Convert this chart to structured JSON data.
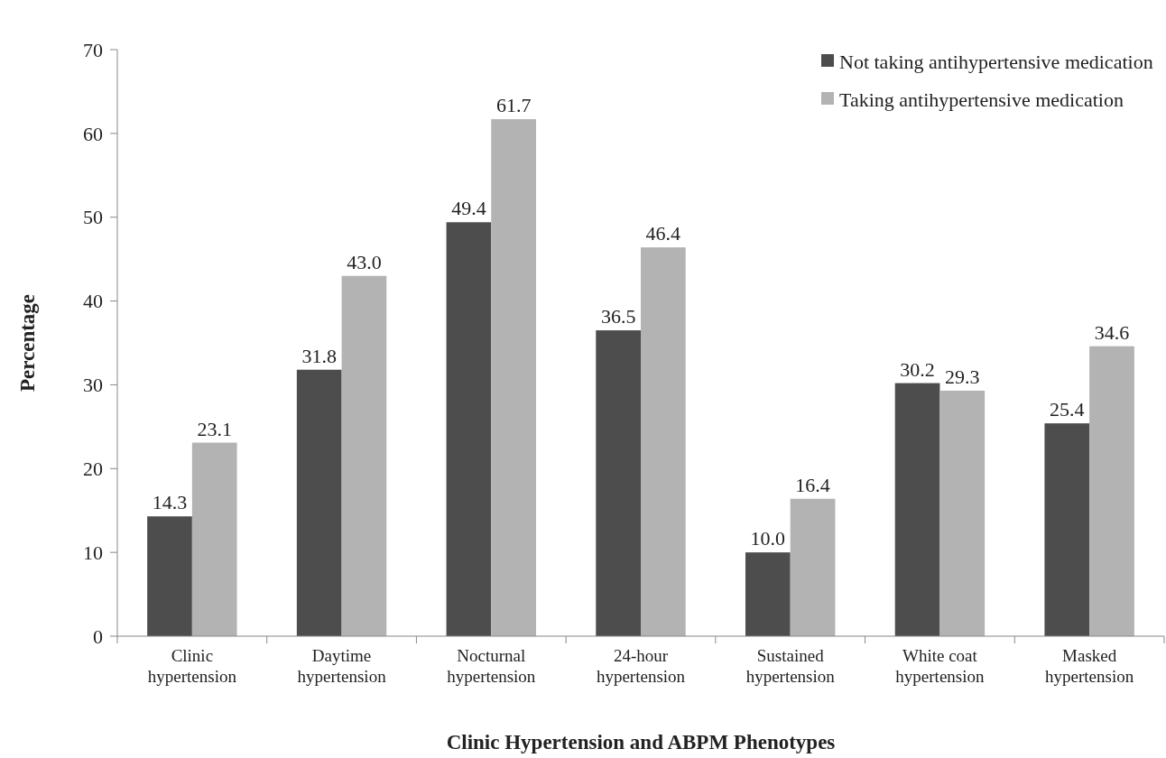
{
  "chart_data": {
    "type": "bar",
    "xlabel": "Clinic Hypertension and ABPM Phenotypes",
    "ylabel": "Percentage",
    "categories": [
      "Clinic hypertension",
      "Daytime hypertension",
      "Nocturnal hypertension",
      "24-hour hypertension",
      "Sustained hypertension",
      "White coat hypertension",
      "Masked hypertension"
    ],
    "series": [
      {
        "name": "Not taking antihypertensive medication",
        "color": "#4d4d4d",
        "values": [
          14.3,
          31.8,
          49.4,
          36.5,
          10.0,
          30.2,
          25.4
        ],
        "value_labels": [
          "14.3",
          "31.8",
          "49.4",
          "36.5",
          "10.0",
          "30.2",
          "25.4"
        ]
      },
      {
        "name": "Taking antihypertensive medication",
        "color": "#b3b3b3",
        "values": [
          23.1,
          43.0,
          61.7,
          46.4,
          16.4,
          29.3,
          34.6
        ],
        "value_labels": [
          "23.1",
          "43.0",
          "61.7",
          "46.4",
          "16.4",
          "29.3",
          "34.6"
        ]
      }
    ],
    "ylim": [
      0,
      70
    ],
    "yticks": [
      0,
      10,
      20,
      30,
      40,
      50,
      60,
      70
    ],
    "grid": false,
    "legend": "top right"
  }
}
